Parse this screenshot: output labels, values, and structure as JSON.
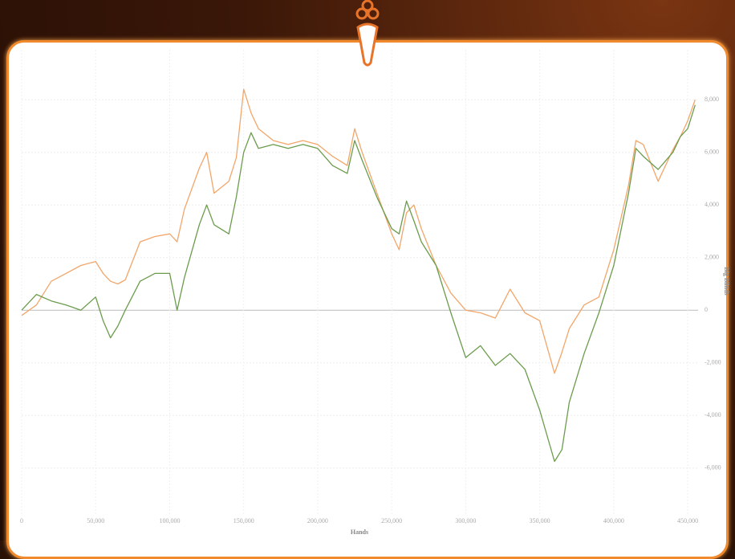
{
  "chart_data": {
    "type": "line",
    "x_label": "Hands",
    "y_label": "Big Blinds",
    "x": [
      0,
      10000,
      20000,
      30000,
      40000,
      50000,
      55000,
      60000,
      65000,
      70000,
      80000,
      90000,
      100000,
      105000,
      110000,
      120000,
      125000,
      130000,
      140000,
      145000,
      150000,
      155000,
      160000,
      170000,
      180000,
      190000,
      200000,
      210000,
      220000,
      225000,
      230000,
      240000,
      250000,
      255000,
      260000,
      265000,
      270000,
      280000,
      290000,
      300000,
      310000,
      320000,
      330000,
      340000,
      350000,
      360000,
      365000,
      370000,
      380000,
      390000,
      400000,
      410000,
      415000,
      420000,
      430000,
      440000,
      445000,
      450000,
      455000
    ],
    "series": [
      {
        "name": "Orange",
        "color": "#f2a66a",
        "values": [
          -200,
          200,
          1100,
          1400,
          1700,
          1850,
          1400,
          1100,
          1000,
          1150,
          2600,
          2800,
          2900,
          2600,
          3850,
          5400,
          6000,
          4450,
          4900,
          5800,
          8400,
          7500,
          6900,
          6450,
          6300,
          6450,
          6300,
          5850,
          5500,
          6900,
          6000,
          4450,
          2900,
          2300,
          3700,
          4000,
          3100,
          1700,
          650,
          0,
          -100,
          -300,
          800,
          -100,
          -400,
          -2400,
          -1600,
          -700,
          200,
          500,
          2300,
          4750,
          6450,
          6300,
          4900,
          6100,
          6600,
          7200,
          8000
        ]
      },
      {
        "name": "Green",
        "color": "#6b9c4c",
        "values": [
          0,
          600,
          350,
          200,
          0,
          500,
          -400,
          -1050,
          -600,
          0,
          1100,
          1400,
          1400,
          0,
          1250,
          3250,
          4000,
          3250,
          2900,
          4300,
          6000,
          6750,
          6150,
          6300,
          6150,
          6300,
          6150,
          5500,
          5200,
          6450,
          5700,
          4300,
          3100,
          2900,
          4150,
          3400,
          2600,
          1700,
          -100,
          -1800,
          -1350,
          -2100,
          -1650,
          -2250,
          -3800,
          -5750,
          -5300,
          -3500,
          -1650,
          -100,
          1700,
          4450,
          6150,
          5850,
          5350,
          6000,
          6600,
          6900,
          7800
        ]
      }
    ],
    "xlim": [
      0,
      457000
    ],
    "ylim": [
      -7750,
      9900
    ],
    "xticks": [
      0,
      {
        "value": 50000,
        "label": "50,000"
      },
      {
        "value": 100000,
        "label": "100,000"
      },
      {
        "value": 150000,
        "label": "150,000"
      },
      {
        "value": 200000,
        "label": "200,000"
      },
      {
        "value": 250000,
        "label": "250,000"
      },
      {
        "value": 300000,
        "label": "300,000"
      },
      {
        "value": 350000,
        "label": "350,000"
      },
      {
        "value": 400000,
        "label": "400,000"
      },
      {
        "value": 450000,
        "label": "450,000"
      }
    ],
    "yticks": [
      {
        "value": -6000,
        "label": "-6,000"
      },
      {
        "value": -4000,
        "label": "-4,000"
      },
      {
        "value": -2000,
        "label": "-2,000"
      },
      0,
      {
        "value": 2000,
        "label": "2,000"
      },
      {
        "value": 4000,
        "label": "4,000"
      },
      {
        "value": 6000,
        "label": "6,000"
      },
      {
        "value": 8000,
        "label": "8,000"
      }
    ],
    "grid": true
  }
}
